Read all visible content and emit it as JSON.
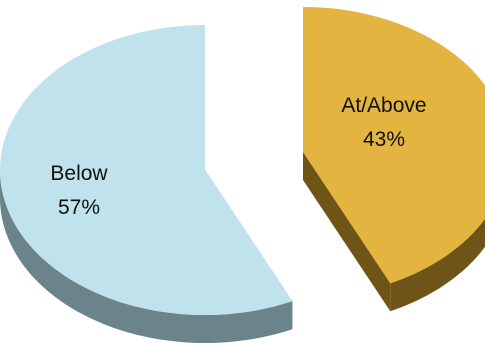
{
  "chart_data": {
    "type": "pie",
    "style": "3d-exploded",
    "slices": [
      {
        "label": "At/Above",
        "value": 43,
        "value_label": "43%",
        "color": "#e3b43f",
        "side_color": "#6e5416"
      },
      {
        "label": "Below",
        "value": 57,
        "value_label": "57%",
        "color": "#bfe2ec",
        "side_color": "#6b838b"
      }
    ]
  }
}
